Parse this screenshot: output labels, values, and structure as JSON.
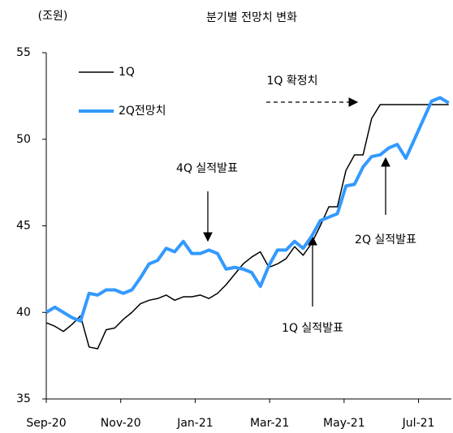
{
  "chart_data": {
    "type": "line",
    "title": "분기별 전망치 변화",
    "unit_label": "(조원)",
    "x": [
      0,
      0.23,
      0.46,
      0.69,
      0.92,
      1.15,
      1.38,
      1.61,
      1.84,
      2.07,
      2.3,
      2.53,
      2.76,
      2.99,
      3.22,
      3.45,
      3.68,
      3.91,
      4.14,
      4.37,
      4.6,
      4.83,
      5.06,
      5.29,
      5.52,
      5.75,
      5.98,
      6.21,
      6.44,
      6.67,
      6.9,
      7.13,
      7.36,
      7.59,
      7.82,
      8.05,
      8.28,
      8.51,
      8.74,
      8.97,
      9.2,
      9.43,
      9.66,
      9.89,
      10.12,
      10.35,
      10.58,
      10.81
    ],
    "series": [
      {
        "name": "1Q",
        "color": "#000000",
        "width": 1.5,
        "values": [
          39.4,
          39.2,
          38.9,
          39.3,
          39.8,
          38.0,
          37.9,
          39.0,
          39.1,
          39.6,
          40.0,
          40.5,
          40.7,
          40.8,
          41.0,
          40.7,
          40.9,
          40.9,
          41.0,
          40.8,
          41.1,
          41.6,
          42.2,
          42.8,
          43.2,
          43.5,
          42.6,
          42.8,
          43.1,
          43.8,
          43.3,
          44.0,
          45.0,
          46.1,
          46.1,
          48.2,
          49.1,
          49.1,
          51.2,
          52.0,
          52.0,
          52.0,
          52.0,
          52.0,
          52.0,
          52.0,
          52.0,
          52.0
        ]
      },
      {
        "name": "2Q전망치",
        "color": "#3399ff",
        "width": 4,
        "values": [
          40.0,
          40.3,
          40.0,
          39.7,
          39.5,
          41.1,
          41.0,
          41.3,
          41.3,
          41.1,
          41.3,
          42.0,
          42.8,
          43.0,
          43.7,
          43.5,
          44.1,
          43.4,
          43.4,
          43.6,
          43.4,
          42.5,
          42.6,
          42.5,
          42.3,
          41.5,
          42.7,
          43.6,
          43.6,
          44.1,
          43.7,
          44.4,
          45.3,
          45.5,
          45.7,
          47.3,
          47.4,
          48.4,
          49.0,
          49.1,
          49.5,
          49.7,
          48.9,
          50.0,
          51.1,
          52.2,
          52.4,
          52.1
        ]
      }
    ],
    "xlim": [
      0,
      10.86
    ],
    "xticks": [
      {
        "value": 0,
        "label": "Sep-20"
      },
      {
        "value": 2,
        "label": "Nov-20"
      },
      {
        "value": 4,
        "label": "Jan-21"
      },
      {
        "value": 6,
        "label": "Mar-21"
      },
      {
        "value": 8,
        "label": "May-21"
      },
      {
        "value": 10,
        "label": "Jul-21"
      }
    ],
    "ylim": [
      35,
      55
    ],
    "yticks": [
      35,
      40,
      45,
      50,
      55
    ],
    "annotations": [
      "1Q 확정치",
      "4Q 실적발표",
      "1Q 실적발표",
      "2Q 실적발표"
    ]
  }
}
